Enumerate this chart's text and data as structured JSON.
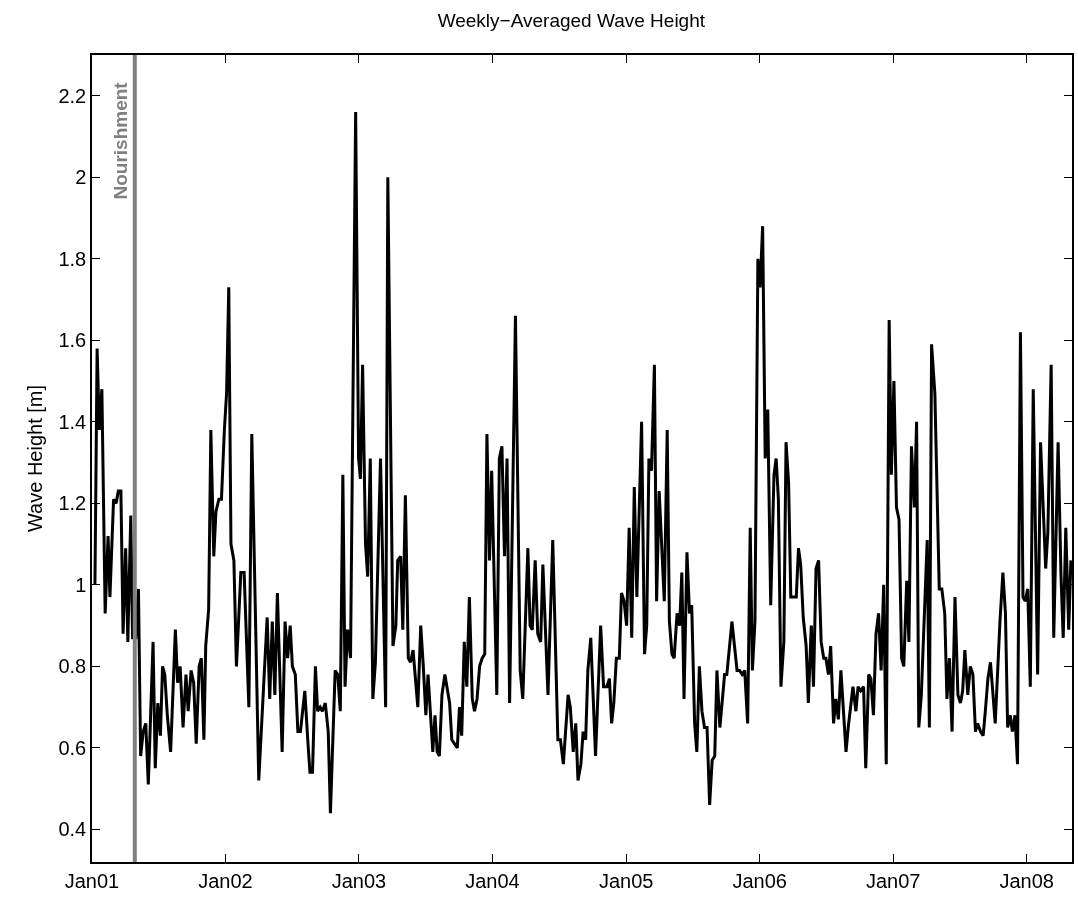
{
  "chart_data": {
    "type": "line",
    "title": "Weekly−Averaged Wave Height",
    "ylabel": "Wave Height [m]",
    "xlim": [
      "2001-01-01",
      "2008-05-04"
    ],
    "ylim": [
      0.32,
      2.3
    ],
    "xticks": [
      {
        "value": "2001-01-01",
        "label": "Jan01"
      },
      {
        "value": "2002-01-01",
        "label": "Jan02"
      },
      {
        "value": "2003-01-01",
        "label": "Jan03"
      },
      {
        "value": "2004-01-01",
        "label": "Jan04"
      },
      {
        "value": "2005-01-01",
        "label": "Jan05"
      },
      {
        "value": "2006-01-01",
        "label": "Jan06"
      },
      {
        "value": "2007-01-01",
        "label": "Jan07"
      },
      {
        "value": "2008-01-01",
        "label": "Jan08"
      }
    ],
    "yticks": [
      0.4,
      0.6,
      0.8,
      1,
      1.2,
      1.4,
      1.6,
      1.8,
      2,
      2.2
    ],
    "marker": "none",
    "line_style": "solid",
    "ref_lines": [
      {
        "axis": "x",
        "value": "2001-04-28",
        "label": "Nourishment",
        "color": "#808080"
      }
    ],
    "series": [
      {
        "color": "#000000",
        "x": [
          "2001-01-09",
          "2001-01-15",
          "2001-01-21",
          "2001-01-28",
          "2001-02-06",
          "2001-02-14",
          "2001-02-19",
          "2001-03-01",
          "2001-03-08",
          "2001-03-14",
          "2001-03-21",
          "2001-03-27",
          "2001-04-03",
          "2001-04-09",
          "2001-04-17",
          "2001-04-22",
          "2001-05-01",
          "2001-05-08",
          "2001-05-14",
          "2001-05-21",
          "2001-05-28",
          "2001-06-04",
          "2001-06-17",
          "2001-06-23",
          "2001-06-30",
          "2001-07-07",
          "2001-07-13",
          "2001-07-19",
          "2001-07-26",
          "2001-08-04",
          "2001-08-17",
          "2001-08-23",
          "2001-08-30",
          "2001-09-07",
          "2001-09-15",
          "2001-09-21",
          "2001-09-29",
          "2001-10-06",
          "2001-10-13",
          "2001-10-21",
          "2001-10-27",
          "2001-11-03",
          "2001-11-08",
          "2001-11-16",
          "2001-11-22",
          "2001-11-30",
          "2001-12-06",
          "2001-12-14",
          "2001-12-21",
          "2001-12-29",
          "2002-01-04",
          "2002-01-10",
          "2002-01-16",
          "2002-01-24",
          "2002-01-31",
          "2002-02-12",
          "2002-02-21",
          "2002-03-06",
          "2002-03-14",
          "2002-04-02",
          "2002-04-25",
          "2002-05-02",
          "2002-05-09",
          "2002-05-16",
          "2002-05-23",
          "2002-06-05",
          "2002-06-13",
          "2002-06-20",
          "2002-06-27",
          "2002-07-03",
          "2002-07-11",
          "2002-07-18",
          "2002-07-25",
          "2002-08-06",
          "2002-08-14",
          "2002-08-20",
          "2002-08-27",
          "2002-09-04",
          "2002-09-10",
          "2002-09-17",
          "2002-09-23",
          "2002-10-01",
          "2002-10-09",
          "2002-10-15",
          "2002-10-28",
          "2002-11-04",
          "2002-11-11",
          "2002-11-18",
          "2002-11-24",
          "2002-12-01",
          "2002-12-09",
          "2002-12-23",
          "2002-12-31",
          "2003-01-05",
          "2003-01-11",
          "2003-01-19",
          "2003-01-25",
          "2003-02-01",
          "2003-02-08",
          "2003-02-15",
          "2003-03-01",
          "2003-03-15",
          "2003-03-21",
          "2003-04-04",
          "2003-04-12",
          "2003-04-17",
          "2003-04-25",
          "2003-05-01",
          "2003-05-08",
          "2003-05-16",
          "2003-05-22",
          "2003-05-29",
          "2003-06-11",
          "2003-06-19",
          "2003-06-26",
          "2003-07-03",
          "2003-07-09",
          "2003-07-22",
          "2003-07-28",
          "2003-08-03",
          "2003-08-09",
          "2003-08-16",
          "2003-08-24",
          "2003-09-06",
          "2003-09-12",
          "2003-09-27",
          "2003-10-03",
          "2003-10-09",
          "2003-10-16",
          "2003-10-23",
          "2003-10-30",
          "2003-11-07",
          "2003-11-13",
          "2003-11-20",
          "2003-11-27",
          "2003-12-04",
          "2003-12-11",
          "2003-12-17",
          "2003-12-24",
          "2003-12-30",
          "2004-01-13",
          "2004-01-20",
          "2004-01-27",
          "2004-02-03",
          "2004-02-10",
          "2004-02-17",
          "2004-03-04",
          "2004-03-17",
          "2004-03-24",
          "2004-04-07",
          "2004-04-13",
          "2004-04-19",
          "2004-04-27",
          "2004-05-04",
          "2004-05-12",
          "2004-05-18",
          "2004-06-01",
          "2004-06-14",
          "2004-06-28",
          "2004-07-05",
          "2004-07-13",
          "2004-07-26",
          "2004-08-01",
          "2004-08-09",
          "2004-08-16",
          "2004-08-22",
          "2004-08-30",
          "2004-09-05",
          "2004-09-12",
          "2004-09-18",
          "2004-09-26",
          "2004-10-09",
          "2004-10-23",
          "2004-10-31",
          "2004-11-09",
          "2004-11-16",
          "2004-11-22",
          "2004-11-28",
          "2004-12-05",
          "2004-12-13",
          "2004-12-19",
          "2004-12-26",
          "2005-01-02",
          "2005-01-09",
          "2005-01-16",
          "2005-01-23",
          "2005-01-30",
          "2005-02-12",
          "2005-02-20",
          "2005-02-26",
          "2005-03-04",
          "2005-03-11",
          "2005-03-19",
          "2005-03-25",
          "2005-04-01",
          "2005-04-15",
          "2005-04-23",
          "2005-04-29",
          "2005-05-06",
          "2005-05-12",
          "2005-05-20",
          "2005-05-27",
          "2005-06-02",
          "2005-06-08",
          "2005-06-16",
          "2005-06-23",
          "2005-06-29",
          "2005-07-07",
          "2005-07-13",
          "2005-07-20",
          "2005-07-27",
          "2005-08-03",
          "2005-08-10",
          "2005-08-17",
          "2005-08-24",
          "2005-08-31",
          "2005-09-06",
          "2005-09-14",
          "2005-09-27",
          "2005-10-03",
          "2005-10-17",
          "2005-10-31",
          "2005-11-07",
          "2005-11-14",
          "2005-11-21",
          "2005-11-29",
          "2005-12-06",
          "2005-12-12",
          "2005-12-19",
          "2005-12-27",
          "2006-01-02",
          "2006-01-09",
          "2006-01-16",
          "2006-01-23",
          "2006-01-31",
          "2006-02-09",
          "2006-02-15",
          "2006-02-21",
          "2006-02-28",
          "2006-03-08",
          "2006-03-14",
          "2006-03-21",
          "2006-03-27",
          "2006-04-11",
          "2006-04-17",
          "2006-04-23",
          "2006-04-30",
          "2006-05-08",
          "2006-05-14",
          "2006-05-22",
          "2006-05-28",
          "2006-06-04",
          "2006-06-11",
          "2006-06-18",
          "2006-06-25",
          "2006-07-01",
          "2006-07-08",
          "2006-07-14",
          "2006-07-22",
          "2006-07-28",
          "2006-08-04",
          "2006-08-11",
          "2006-08-18",
          "2006-08-25",
          "2006-08-31",
          "2006-09-13",
          "2006-09-21",
          "2006-09-27",
          "2006-10-04",
          "2006-10-12",
          "2006-10-18",
          "2006-10-26",
          "2006-11-01",
          "2006-11-08",
          "2006-11-15",
          "2006-11-22",
          "2006-11-29",
          "2006-12-06",
          "2006-12-13",
          "2006-12-21",
          "2006-12-27",
          "2007-01-03",
          "2007-01-10",
          "2007-01-17",
          "2007-01-24",
          "2007-01-30",
          "2007-02-07",
          "2007-02-13",
          "2007-02-20",
          "2007-02-28",
          "2007-03-06",
          "2007-03-12",
          "2007-03-19",
          "2007-04-04",
          "2007-04-10",
          "2007-04-16",
          "2007-04-25",
          "2007-05-07",
          "2007-05-14",
          "2007-05-22",
          "2007-05-28",
          "2007-06-04",
          "2007-06-11",
          "2007-06-19",
          "2007-06-27",
          "2007-07-04",
          "2007-07-10",
          "2007-07-16",
          "2007-07-24",
          "2007-07-31",
          "2007-08-07",
          "2007-08-14",
          "2007-08-20",
          "2007-08-28",
          "2007-09-04",
          "2007-09-10",
          "2007-09-17",
          "2007-09-24",
          "2007-10-01",
          "2007-10-07",
          "2007-10-20",
          "2007-10-28",
          "2007-11-04",
          "2007-11-10",
          "2007-11-17",
          "2007-11-23",
          "2007-11-30",
          "2007-12-07",
          "2007-12-15",
          "2007-12-22",
          "2007-12-28",
          "2008-01-04",
          "2008-01-11",
          "2008-01-19",
          "2008-01-31",
          "2008-02-08",
          "2008-02-22",
          "2008-02-28",
          "2008-03-08",
          "2008-03-15",
          "2008-03-27",
          "2008-04-04",
          "2008-04-10",
          "2008-04-17",
          "2008-04-25",
          "2008-05-01"
        ],
        "values": [
          1.0,
          1.58,
          1.38,
          1.48,
          0.93,
          1.12,
          0.97,
          1.21,
          1.2,
          1.23,
          1.23,
          0.88,
          1.09,
          0.86,
          1.17,
          0.87,
          0.87,
          0.99,
          0.58,
          0.64,
          0.66,
          0.51,
          0.86,
          0.55,
          0.71,
          0.63,
          0.8,
          0.78,
          0.68,
          0.59,
          0.89,
          0.76,
          0.8,
          0.65,
          0.78,
          0.69,
          0.79,
          0.76,
          0.61,
          0.8,
          0.82,
          0.62,
          0.85,
          0.94,
          1.38,
          1.07,
          1.18,
          1.21,
          1.21,
          1.38,
          1.47,
          1.73,
          1.1,
          1.06,
          0.8,
          1.03,
          1.03,
          0.7,
          1.37,
          0.52,
          0.92,
          0.72,
          0.91,
          0.73,
          0.98,
          0.59,
          0.91,
          0.82,
          0.9,
          0.8,
          0.78,
          0.64,
          0.64,
          0.74,
          0.62,
          0.54,
          0.54,
          0.8,
          0.69,
          0.7,
          0.69,
          0.71,
          0.64,
          0.44,
          0.79,
          0.78,
          0.69,
          1.27,
          0.75,
          0.89,
          0.82,
          2.16,
          1.31,
          1.26,
          1.54,
          1.1,
          1.02,
          1.31,
          0.72,
          0.81,
          1.31,
          0.7,
          2.0,
          0.85,
          0.9,
          1.06,
          1.07,
          0.89,
          1.22,
          0.82,
          0.81,
          0.84,
          0.7,
          0.9,
          0.8,
          0.68,
          0.78,
          0.59,
          0.68,
          0.59,
          0.58,
          0.73,
          0.78,
          0.71,
          0.62,
          0.6,
          0.7,
          0.63,
          0.86,
          0.75,
          0.97,
          0.72,
          0.69,
          0.72,
          0.8,
          0.82,
          0.83,
          1.37,
          1.06,
          1.28,
          0.73,
          1.31,
          1.34,
          1.07,
          1.31,
          0.71,
          1.66,
          0.79,
          0.72,
          1.09,
          0.9,
          0.89,
          1.06,
          0.88,
          0.86,
          1.05,
          0.73,
          1.11,
          0.62,
          0.62,
          0.56,
          0.73,
          0.7,
          0.59,
          0.66,
          0.52,
          0.56,
          0.64,
          0.62,
          0.79,
          0.87,
          0.58,
          0.9,
          0.75,
          0.75,
          0.77,
          0.66,
          0.71,
          0.82,
          0.82,
          0.98,
          0.96,
          0.9,
          1.14,
          0.87,
          1.24,
          0.97,
          1.4,
          0.83,
          0.9,
          1.31,
          1.28,
          1.54,
          0.96,
          1.23,
          0.96,
          1.38,
          0.91,
          0.83,
          0.82,
          0.93,
          0.9,
          1.03,
          0.72,
          1.08,
          0.93,
          0.95,
          0.66,
          0.59,
          0.8,
          0.69,
          0.65,
          0.65,
          0.46,
          0.57,
          0.58,
          0.79,
          0.65,
          0.78,
          0.78,
          0.91,
          0.79,
          0.79,
          0.78,
          0.79,
          0.66,
          1.14,
          0.79,
          0.91,
          1.8,
          1.73,
          1.88,
          1.31,
          1.43,
          0.95,
          1.27,
          1.31,
          1.21,
          0.75,
          0.86,
          1.35,
          1.25,
          0.97,
          0.97,
          1.09,
          1.05,
          0.92,
          0.85,
          0.71,
          0.9,
          0.75,
          1.04,
          1.06,
          0.86,
          0.82,
          0.82,
          0.78,
          0.85,
          0.66,
          0.72,
          0.67,
          0.79,
          0.69,
          0.59,
          0.65,
          0.75,
          0.69,
          0.75,
          0.74,
          0.75,
          0.55,
          0.78,
          0.77,
          0.68,
          0.88,
          0.93,
          0.79,
          1.0,
          0.56,
          1.65,
          1.27,
          1.5,
          1.19,
          1.16,
          0.82,
          0.8,
          1.01,
          0.86,
          1.34,
          1.19,
          1.4,
          0.65,
          0.73,
          1.11,
          0.65,
          1.59,
          1.47,
          0.99,
          0.99,
          0.93,
          0.72,
          0.82,
          0.64,
          0.97,
          0.73,
          0.71,
          0.74,
          0.84,
          0.73,
          0.8,
          0.78,
          0.64,
          0.66,
          0.64,
          0.63,
          0.69,
          0.77,
          0.81,
          0.73,
          0.66,
          0.91,
          1.03,
          0.93,
          0.65,
          0.68,
          0.64,
          0.68,
          0.56,
          1.62,
          0.97,
          0.96,
          0.99,
          0.75,
          1.48,
          0.78,
          1.35,
          1.04,
          1.13,
          1.54,
          0.87,
          1.35,
          1.02,
          0.87,
          1.14,
          0.89,
          1.06
        ]
      }
    ]
  }
}
